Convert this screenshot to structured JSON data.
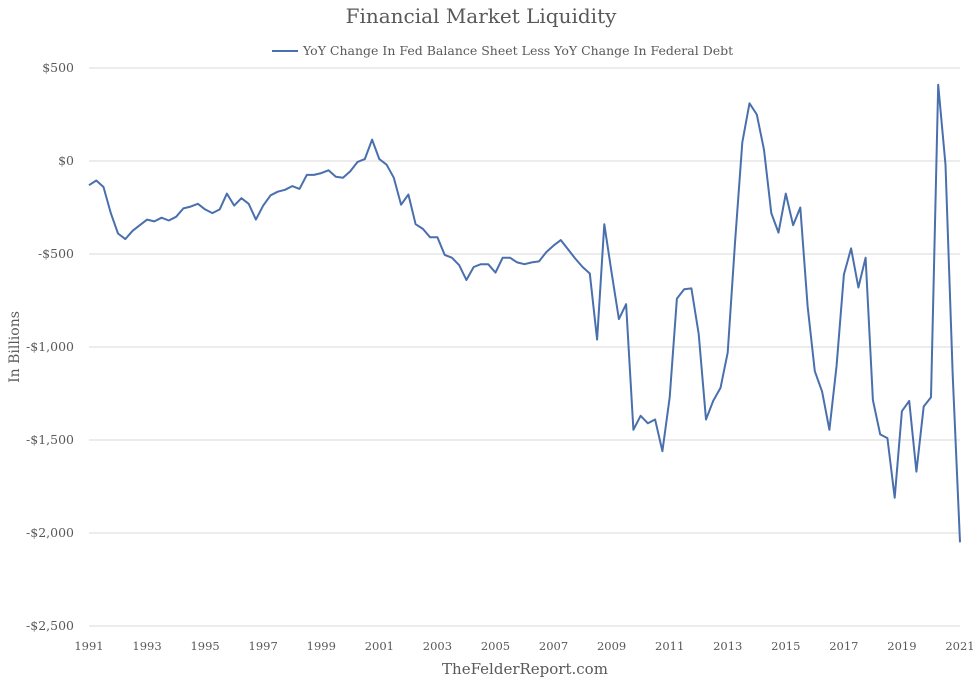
{
  "chart_data": {
    "type": "line",
    "title": "Financial Market Liquidity",
    "ylabel": "In Billions",
    "footer": "TheFelderReport.com",
    "legend_position": "top-center",
    "grid": "horizontal",
    "ylim": [
      -2500,
      500
    ],
    "xlim": [
      1991,
      2021
    ],
    "yticks": [
      {
        "value": 500,
        "label": "$500"
      },
      {
        "value": 0,
        "label": "$0"
      },
      {
        "value": -500,
        "label": "-$500"
      },
      {
        "value": -1000,
        "label": "-$1,000"
      },
      {
        "value": -1500,
        "label": "-$1,500"
      },
      {
        "value": -2000,
        "label": "-$2,000"
      },
      {
        "value": -2500,
        "label": "-$2,500"
      }
    ],
    "xticks": [
      "1991",
      "1993",
      "1995",
      "1997",
      "1999",
      "2001",
      "2003",
      "2005",
      "2007",
      "2009",
      "2011",
      "2013",
      "2015",
      "2017",
      "2019",
      "2021"
    ],
    "colors": {
      "series": "#4a6fad",
      "grid": "#d9d9d9",
      "text": "#595959"
    },
    "series": [
      {
        "name": "YoY Change In Fed Balance Sheet Less YoY Change In Federal Debt",
        "x": [
          1991.0,
          1991.25,
          1991.5,
          1991.75,
          1992.0,
          1992.25,
          1992.5,
          1992.75,
          1993.0,
          1993.25,
          1993.5,
          1993.75,
          1994.0,
          1994.25,
          1994.5,
          1994.75,
          1995.0,
          1995.25,
          1995.5,
          1995.75,
          1996.0,
          1996.25,
          1996.5,
          1996.75,
          1997.0,
          1997.25,
          1997.5,
          1997.75,
          1998.0,
          1998.25,
          1998.5,
          1998.75,
          1999.0,
          1999.25,
          1999.5,
          1999.75,
          2000.0,
          2000.25,
          2000.5,
          2000.75,
          2001.0,
          2001.25,
          2001.5,
          2001.75,
          2002.0,
          2002.25,
          2002.5,
          2002.75,
          2003.0,
          2003.25,
          2003.5,
          2003.75,
          2004.0,
          2004.25,
          2004.5,
          2004.75,
          2005.0,
          2005.25,
          2005.5,
          2005.75,
          2006.0,
          2006.25,
          2006.5,
          2006.75,
          2007.0,
          2007.25,
          2007.5,
          2007.75,
          2008.0,
          2008.25,
          2008.5,
          2008.75,
          2009.0,
          2009.25,
          2009.5,
          2009.75,
          2010.0,
          2010.25,
          2010.5,
          2010.75,
          2011.0,
          2011.25,
          2011.5,
          2011.75,
          2012.0,
          2012.25,
          2012.5,
          2012.75,
          2013.0,
          2013.25,
          2013.5,
          2013.75,
          2014.0,
          2014.25,
          2014.5,
          2014.75,
          2015.0,
          2015.25,
          2015.5,
          2015.75,
          2016.0,
          2016.25,
          2016.5,
          2016.75,
          2017.0,
          2017.25,
          2017.5,
          2017.75,
          2018.0,
          2018.25,
          2018.5,
          2018.75,
          2019.0,
          2019.25,
          2019.5,
          2019.75,
          2020.0,
          2020.25,
          2020.5,
          2020.75,
          2021.0
        ],
        "values": [
          -130,
          -105,
          -140,
          -280,
          -390,
          -420,
          -375,
          -345,
          -315,
          -325,
          -305,
          -320,
          -300,
          -255,
          -245,
          -230,
          -260,
          -280,
          -260,
          -175,
          -240,
          -200,
          -230,
          -315,
          -240,
          -185,
          -165,
          -155,
          -135,
          -150,
          -75,
          -75,
          -65,
          -50,
          -85,
          -90,
          -55,
          -5,
          10,
          115,
          10,
          -20,
          -90,
          -235,
          -180,
          -340,
          -365,
          -410,
          -410,
          -505,
          -520,
          -560,
          -640,
          -570,
          -555,
          -555,
          -600,
          -520,
          -520,
          -545,
          -555,
          -545,
          -540,
          -490,
          -455,
          -425,
          -475,
          -525,
          -570,
          -605,
          -960,
          -340,
          -600,
          -850,
          -770,
          -1445,
          -1370,
          -1410,
          -1390,
          -1560,
          -1270,
          -740,
          -690,
          -685,
          -930,
          -1390,
          -1290,
          -1220,
          -1030,
          -440,
          100,
          310,
          250,
          60,
          -280,
          -385,
          -175,
          -345,
          -250,
          -780,
          -1130,
          -1240,
          -1445,
          -1100,
          -610,
          -470,
          -680,
          -520,
          -1285,
          -1470,
          -1490,
          -1810,
          -1345,
          -1290,
          -1670,
          -1320,
          -1270,
          410,
          -20,
          -1150,
          -2050
        ]
      }
    ]
  }
}
